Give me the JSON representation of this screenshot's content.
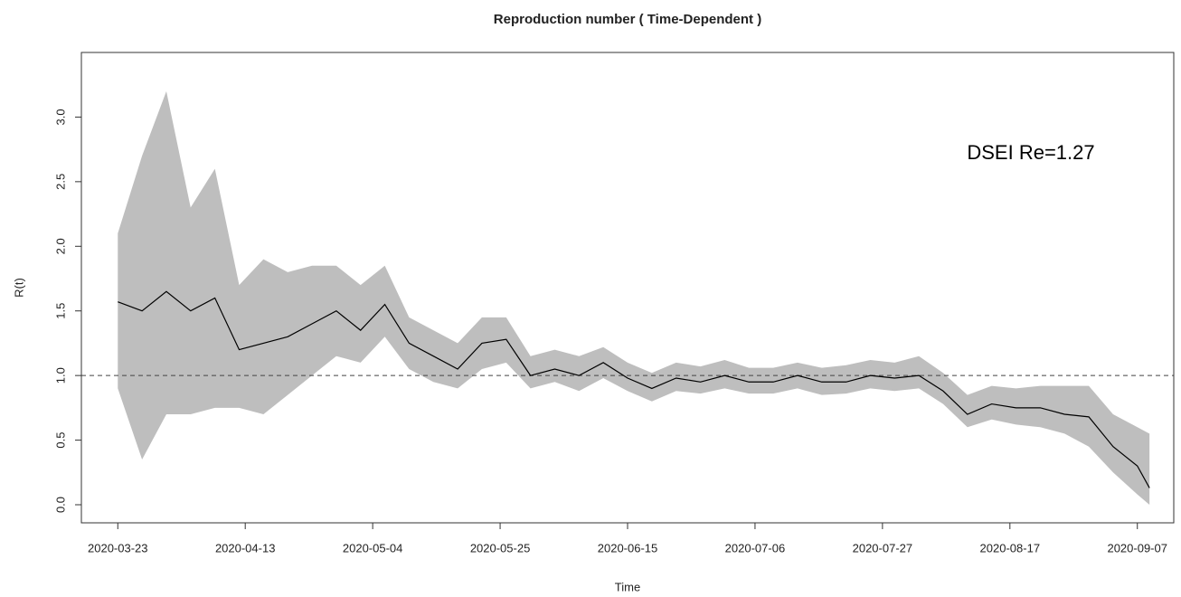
{
  "chart_data": {
    "type": "line-band",
    "title": "Reproduction number ( Time-Dependent )",
    "x_label": "Time",
    "y_label": "R(t)",
    "annotation": "DSEI Re=1.27",
    "reference_line": 1,
    "line_color": "#000000",
    "band_color": "#bebebe",
    "x": [
      "2020-03-23",
      "2020-03-27",
      "2020-03-31",
      "2020-04-04",
      "2020-04-08",
      "2020-04-12",
      "2020-04-16",
      "2020-04-20",
      "2020-04-24",
      "2020-04-28",
      "2020-05-02",
      "2020-05-06",
      "2020-05-10",
      "2020-05-14",
      "2020-05-18",
      "2020-05-22",
      "2020-05-26",
      "2020-05-30",
      "2020-06-03",
      "2020-06-07",
      "2020-06-11",
      "2020-06-15",
      "2020-06-19",
      "2020-06-23",
      "2020-06-27",
      "2020-07-01",
      "2020-07-05",
      "2020-07-09",
      "2020-07-13",
      "2020-07-17",
      "2020-07-21",
      "2020-07-25",
      "2020-07-29",
      "2020-08-02",
      "2020-08-06",
      "2020-08-10",
      "2020-08-14",
      "2020-08-18",
      "2020-08-22",
      "2020-08-26",
      "2020-08-30",
      "2020-09-03",
      "2020-09-07",
      "2020-09-09"
    ],
    "values": [
      1.57,
      1.5,
      1.65,
      1.5,
      1.6,
      1.2,
      1.25,
      1.3,
      1.4,
      1.5,
      1.35,
      1.55,
      1.25,
      1.15,
      1.05,
      1.25,
      1.28,
      1.0,
      1.05,
      1.0,
      1.1,
      0.98,
      0.9,
      0.98,
      0.95,
      1.0,
      0.95,
      0.95,
      1.0,
      0.95,
      0.95,
      1.0,
      0.98,
      1.0,
      0.88,
      0.7,
      0.78,
      0.75,
      0.75,
      0.7,
      0.68,
      0.45,
      0.3,
      0.13
    ],
    "lower": [
      0.9,
      0.35,
      0.7,
      0.7,
      0.75,
      0.75,
      0.7,
      0.85,
      1.0,
      1.15,
      1.1,
      1.3,
      1.05,
      0.95,
      0.9,
      1.05,
      1.1,
      0.9,
      0.95,
      0.88,
      0.98,
      0.88,
      0.8,
      0.88,
      0.86,
      0.9,
      0.86,
      0.86,
      0.9,
      0.85,
      0.86,
      0.9,
      0.88,
      0.9,
      0.78,
      0.6,
      0.66,
      0.62,
      0.6,
      0.55,
      0.45,
      0.25,
      0.08,
      0.0
    ],
    "upper": [
      2.1,
      2.7,
      3.2,
      2.3,
      2.6,
      1.7,
      1.9,
      1.8,
      1.85,
      1.85,
      1.7,
      1.85,
      1.45,
      1.35,
      1.25,
      1.45,
      1.45,
      1.15,
      1.2,
      1.15,
      1.22,
      1.1,
      1.02,
      1.1,
      1.07,
      1.12,
      1.06,
      1.06,
      1.1,
      1.06,
      1.08,
      1.12,
      1.1,
      1.15,
      1.02,
      0.85,
      0.92,
      0.9,
      0.92,
      0.92,
      0.92,
      0.7,
      0.6,
      0.55
    ],
    "xlim": [
      "2020-03-17",
      "2020-09-13"
    ],
    "xticks": [
      "2020-03-23",
      "2020-04-13",
      "2020-05-04",
      "2020-05-25",
      "2020-06-15",
      "2020-07-06",
      "2020-07-27",
      "2020-08-17",
      "2020-09-07"
    ],
    "ylim": [
      -0.14,
      3.5
    ],
    "yticks": [
      {
        "value": 0,
        "label": "0.0"
      },
      0.5,
      {
        "value": 1,
        "label": "1.0"
      },
      1.5,
      {
        "value": 2,
        "label": "2.0"
      },
      2.5,
      {
        "value": 3,
        "label": "3.0"
      }
    ]
  }
}
